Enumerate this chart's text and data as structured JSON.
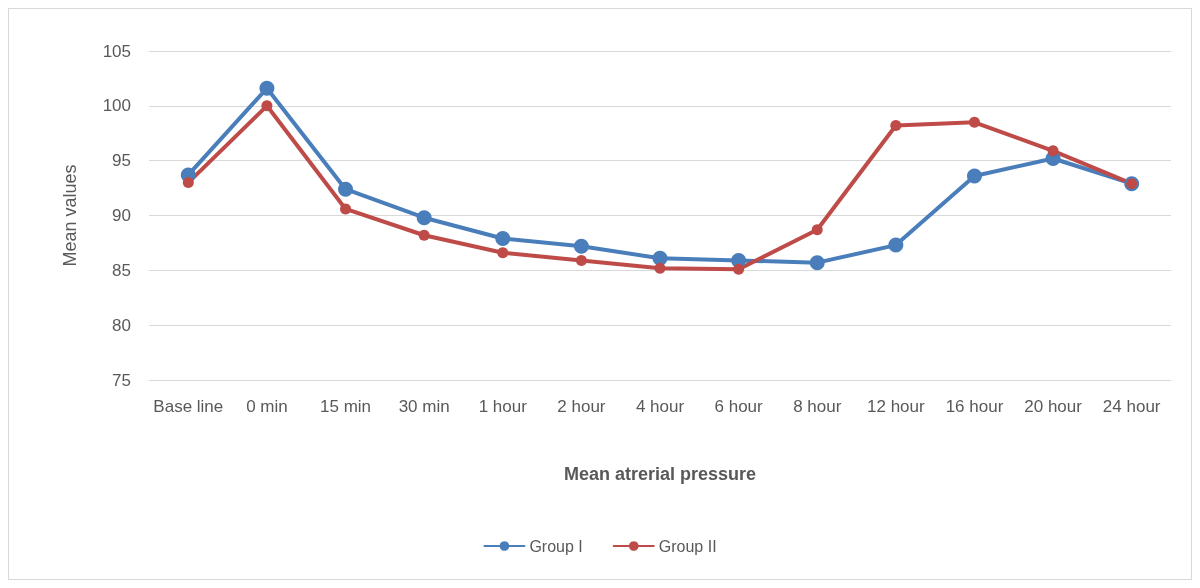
{
  "chart_data": {
    "type": "line",
    "xlabel": "Mean atrerial pressure",
    "ylabel": "Mean values",
    "categories": [
      "Base line",
      "0 min",
      "15 min",
      "30 min",
      "1 hour",
      "2 hour",
      "4 hour",
      "6 hour",
      "8 hour",
      "12 hour",
      "16 hour",
      "20 hour",
      "24 hour"
    ],
    "series": [
      {
        "name": "Group I",
        "color": "#4a7ebb",
        "values": [
          93.7,
          101.6,
          92.4,
          89.8,
          87.9,
          87.2,
          86.1,
          85.9,
          85.7,
          87.3,
          93.6,
          95.2,
          92.9
        ]
      },
      {
        "name": "Group II",
        "color": "#be4b48",
        "values": [
          93.0,
          100.0,
          90.6,
          88.2,
          86.6,
          85.9,
          85.2,
          85.1,
          88.7,
          98.2,
          98.5,
          95.9,
          92.9
        ]
      }
    ],
    "ylim": [
      75,
      105
    ],
    "yticks": [
      75,
      80,
      85,
      90,
      95,
      100,
      105
    ],
    "grid": "y",
    "legend": "bottom",
    "marker": "circle",
    "line_style": "solid"
  }
}
